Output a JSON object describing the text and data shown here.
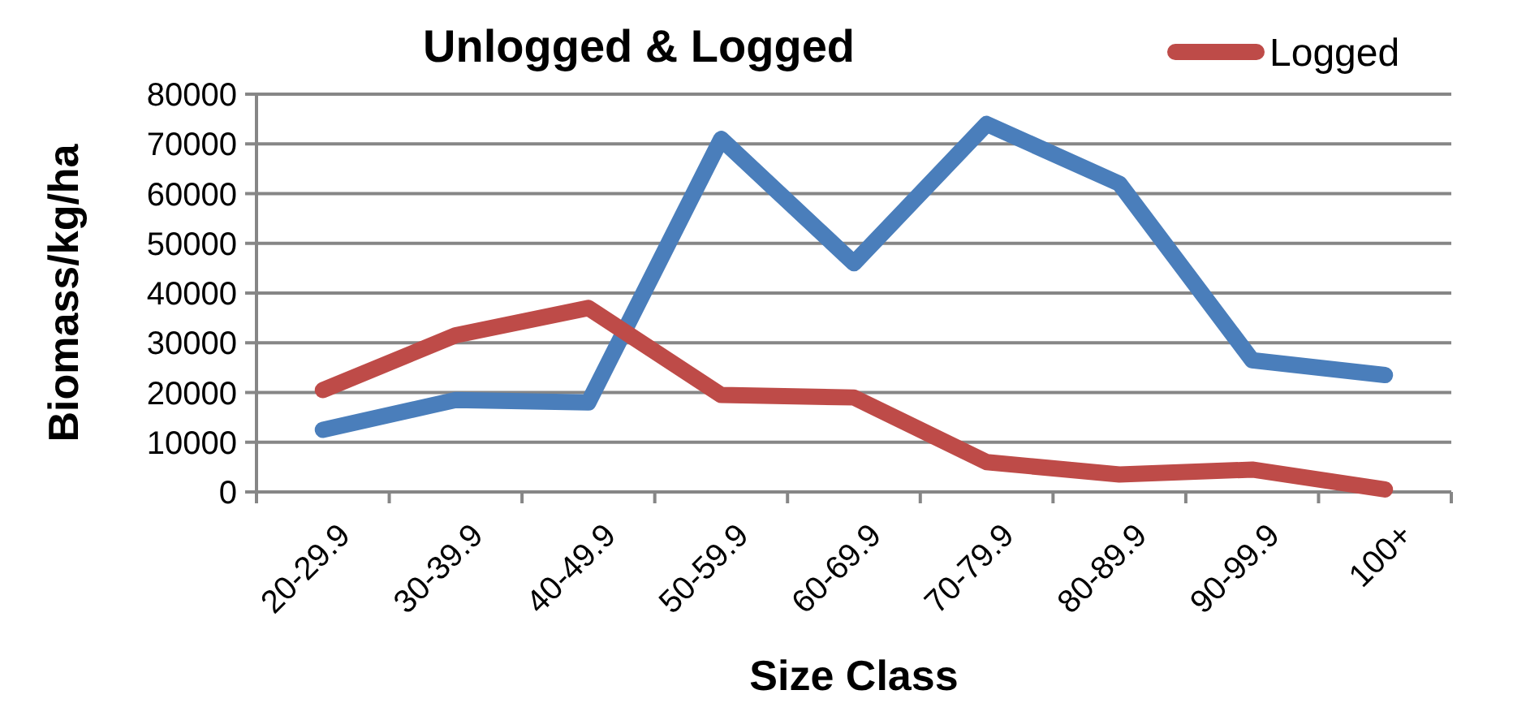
{
  "chart_data": {
    "type": "line",
    "title": "Unlogged & Logged",
    "xlabel": "Size Class",
    "ylabel": "Biomass/kg/ha",
    "categories": [
      "20-29.9",
      "30-39.9",
      "40-49.9",
      "50-59.9",
      "60-69.9",
      "70-79.9",
      "80-89.9",
      "90-99.9",
      "100+"
    ],
    "series": [
      {
        "color": "#4a7ebb",
        "values": [
          12500,
          18500,
          18000,
          71000,
          46000,
          74000,
          62000,
          26500,
          23500
        ]
      },
      {
        "name": "Logged",
        "color": "#be4b48",
        "values": [
          20500,
          31500,
          37000,
          19500,
          19000,
          6000,
          3500,
          4500,
          500
        ]
      }
    ],
    "ylim": [
      0,
      80000
    ],
    "yticks": [
      0,
      10000,
      20000,
      30000,
      40000,
      50000,
      60000,
      70000,
      80000
    ],
    "grid": "y",
    "legend": "top right",
    "marker": "none",
    "line_style": "solid"
  }
}
